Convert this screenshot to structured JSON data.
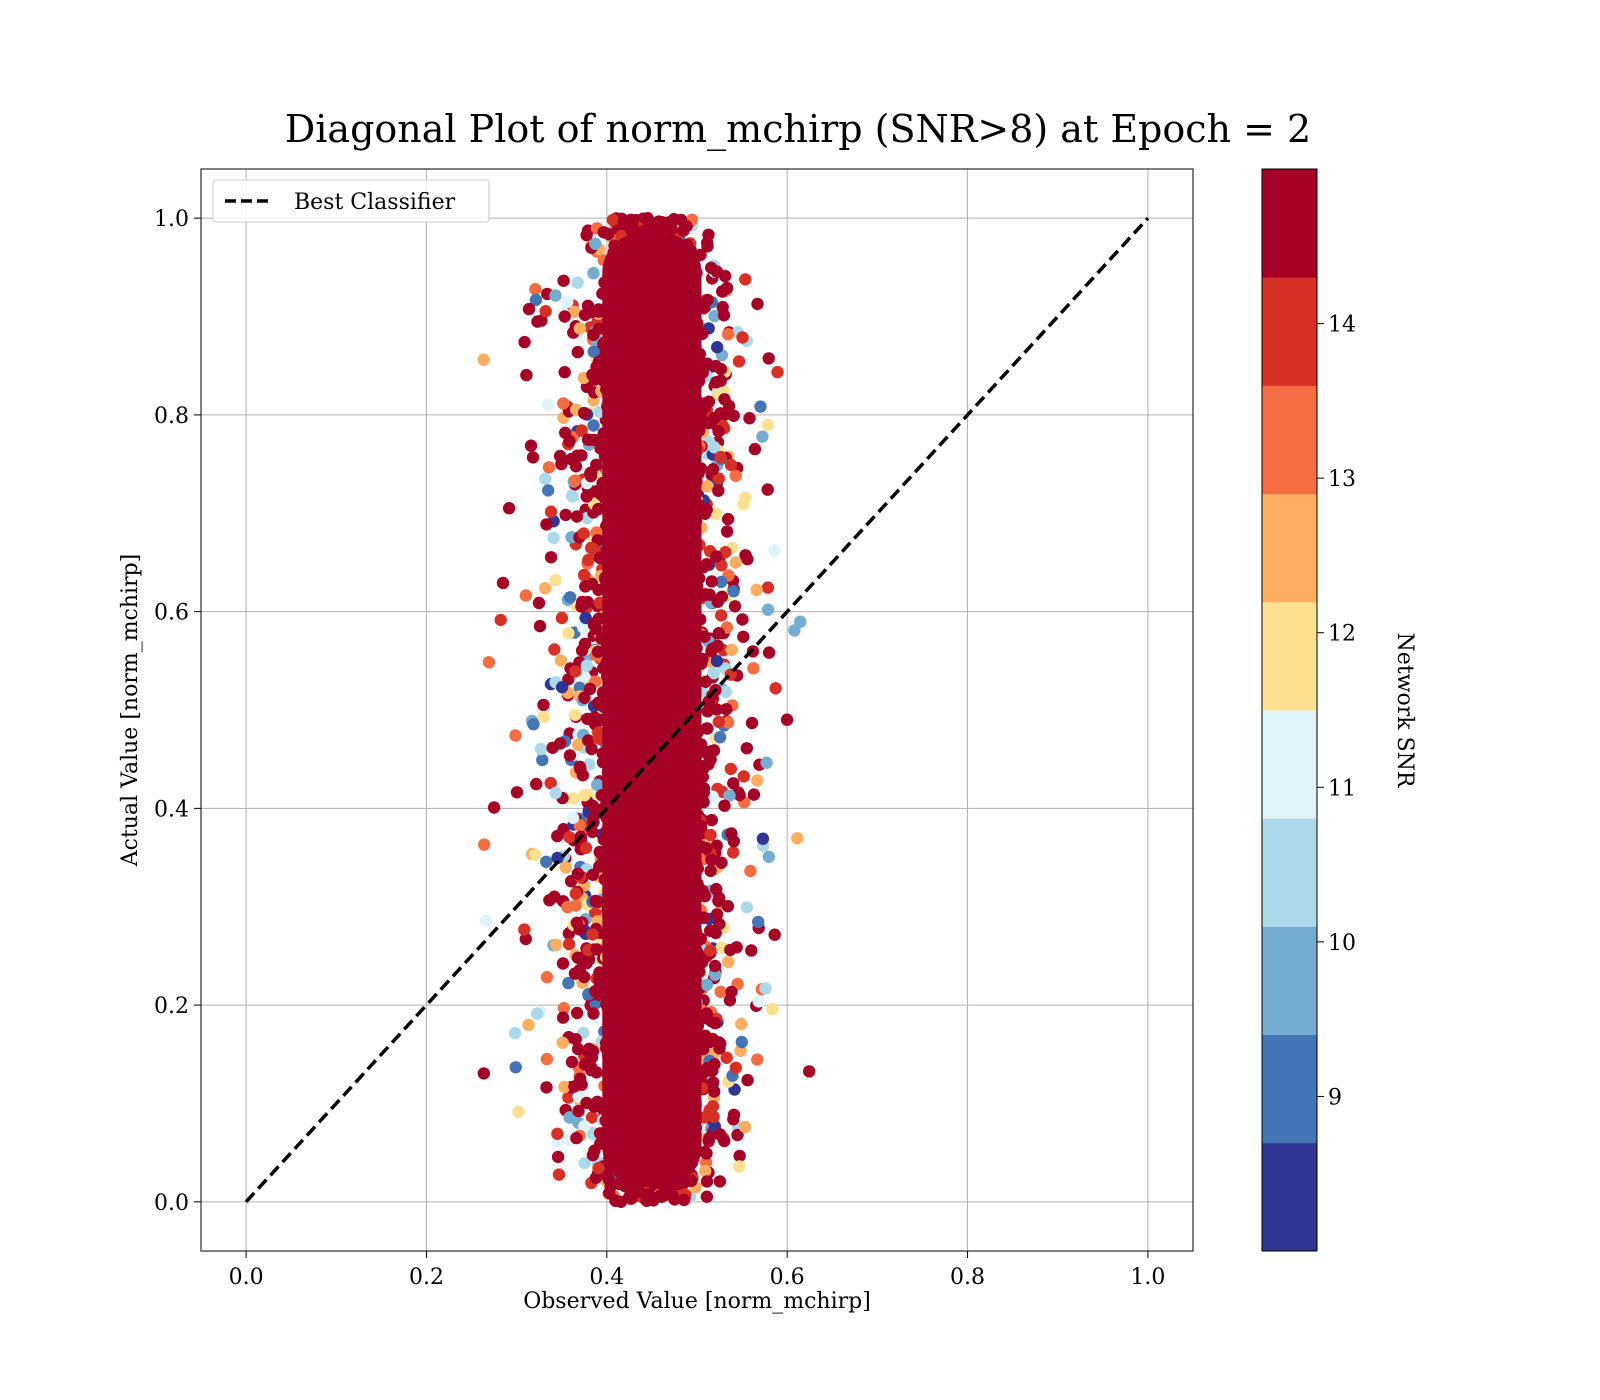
{
  "chart_data": {
    "type": "scatter",
    "title": "Diagonal Plot of norm_mchirp (SNR>8) at Epoch = 2",
    "xlabel": "Observed Value [norm_mchirp]",
    "ylabel": "Actual Value [norm_mchirp]",
    "xlim": [
      -0.05,
      1.05
    ],
    "ylim": [
      -0.05,
      1.05
    ],
    "x_ticks": [
      "0.0",
      "0.2",
      "0.4",
      "0.6",
      "0.8",
      "1.0"
    ],
    "y_ticks": [
      "0.0",
      "0.2",
      "0.4",
      "0.6",
      "0.8",
      "1.0"
    ],
    "grid": true,
    "legend": {
      "position": "upper-left",
      "entries": [
        "Best Classifier"
      ]
    },
    "reference_line": {
      "name": "Best Classifier",
      "x": [
        0.0,
        1.0
      ],
      "y": [
        0.0,
        1.0
      ],
      "style": "dashed",
      "color": "#000000"
    },
    "colorbar": {
      "label": "Network SNR",
      "range": [
        8.0,
        15.0
      ],
      "ticks": [
        "9",
        "10",
        "11",
        "12",
        "13",
        "14"
      ],
      "colormap": "RdYlBu_r",
      "bins": 10,
      "colors": [
        "#313695",
        "#4575b4",
        "#74add1",
        "#abd9e9",
        "#e0f3f8",
        "#fee090",
        "#fdae61",
        "#f46d43",
        "#d73027",
        "#a50026"
      ]
    },
    "point_distribution": {
      "description_x_center": 0.45,
      "x_core_spread": 0.035,
      "x_outer_spread": 0.06,
      "y_range": [
        0.0,
        1.0
      ],
      "dominant_snr": "above 14"
    }
  }
}
